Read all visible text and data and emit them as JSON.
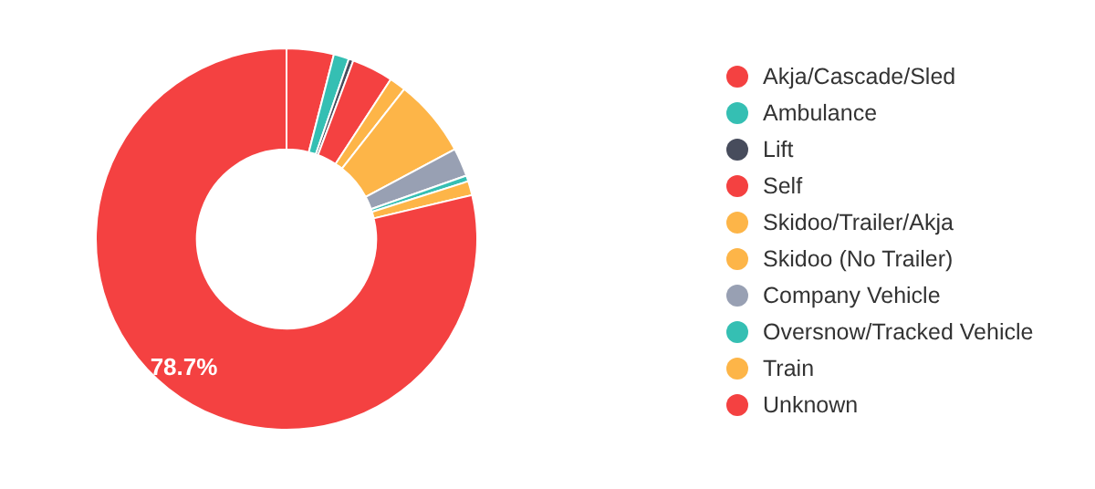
{
  "chart_data": {
    "type": "donut",
    "categories": [
      "Akja/Cascade/Sled",
      "Ambulance",
      "Lift",
      "Self",
      "Skidoo/Trailer/Akja",
      "Skidoo (No Trailer)",
      "Company Vehicle",
      "Oversnow/Tracked Vehicle",
      "Train",
      "Unknown"
    ],
    "values": [
      4.0,
      1.3,
      0.4,
      3.5,
      1.4,
      6.6,
      2.4,
      0.5,
      1.2,
      78.7
    ],
    "colors": [
      "#f44141",
      "#35bfb3",
      "#474c5c",
      "#f44141",
      "#fdb548",
      "#fdb548",
      "#98a0b3",
      "#35bfb3",
      "#fdb548",
      "#f44141"
    ],
    "value_labels": [
      null,
      null,
      null,
      null,
      null,
      null,
      null,
      null,
      null,
      "78.7%"
    ],
    "legend": "right"
  }
}
